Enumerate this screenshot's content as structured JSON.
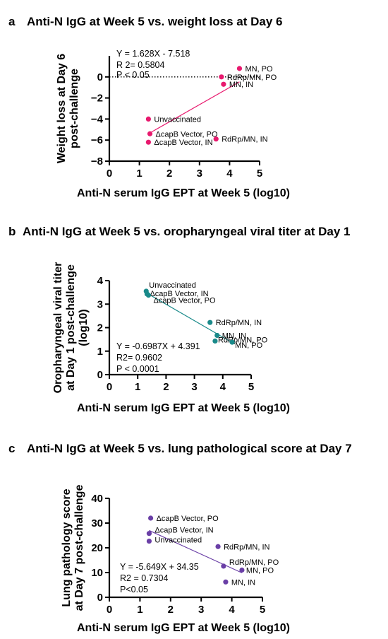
{
  "figure": {
    "panels": [
      {
        "letter": "a",
        "title": "Anti-N IgG at Week 5 vs. weight loss at Day 6",
        "color": "#e8196e",
        "stats": [
          "Y = 1.628X - 7.518",
          "R 2= 0.5804",
          "P < 0.05"
        ]
      },
      {
        "letter": "b",
        "title": "Anti-N IgG at Week 5 vs. oropharyngeal viral titer at Day 1",
        "color": "#1a8a8a",
        "stats": [
          "Y = -0.6987X + 4.391",
          "R2= 0.9602",
          "P < 0.0001"
        ]
      },
      {
        "letter": "c",
        "title": "Anti-N IgG at Week 5 vs. lung pathological score at Day 7",
        "color": "#6a3fa6",
        "stats": [
          "Y = -5.649X + 34.35",
          "R2 = 0.7304",
          "P<0.05"
        ]
      }
    ]
  },
  "chart_data": [
    {
      "type": "scatter",
      "title": "Anti-N IgG at Week 5 vs. weight loss at Day 6",
      "xlabel": "Anti-N serum IgG EPT at Week 5 (log10)",
      "ylabel": "Weight loss at Day 6 post-challenge",
      "xlim": [
        0,
        5
      ],
      "ylim": [
        -8,
        2
      ],
      "xticks": [
        0,
        1,
        2,
        3,
        4,
        5
      ],
      "yticks": [
        -8,
        -6,
        -4,
        -2,
        0
      ],
      "reference_line_y": 0,
      "points": [
        {
          "label": "MN, PO",
          "x": 4.33,
          "y": 0.8
        },
        {
          "label": "RdRp/MN, PO",
          "x": 3.73,
          "y": 0.0
        },
        {
          "label": "MN, IN",
          "x": 3.8,
          "y": -0.7
        },
        {
          "label": "Unvaccinated",
          "x": 1.3,
          "y": -4.0
        },
        {
          "label": "ΔcapB Vector, PO",
          "x": 1.35,
          "y": -5.4
        },
        {
          "label": "RdRp/MN, IN",
          "x": 3.55,
          "y": -5.9
        },
        {
          "label": "ΔcapB Vector, IN",
          "x": 1.3,
          "y": -6.2
        }
      ],
      "fit": {
        "slope": 1.628,
        "intercept": -7.518,
        "x_range": [
          1.3,
          4.33
        ]
      }
    },
    {
      "type": "scatter",
      "title": "Anti-N IgG at Week 5 vs. oropharyngeal viral titer at Day 1",
      "xlabel": "Anti-N serum IgG EPT at Week 5 (log10)",
      "ylabel": "Oropharyngeal viral titer at Day 1 post-challenge (log10)",
      "xlim": [
        0,
        5
      ],
      "ylim": [
        0,
        4
      ],
      "xticks": [
        0,
        1,
        2,
        3,
        4,
        5
      ],
      "yticks": [
        0,
        1,
        2,
        3,
        4
      ],
      "points": [
        {
          "label": "Unvaccinated",
          "x": 1.3,
          "y": 3.55
        },
        {
          "label": "ΔcapB Vector, IN",
          "x": 1.33,
          "y": 3.43
        },
        {
          "label": "ΔcapB Vector, PO",
          "x": 1.38,
          "y": 3.38
        },
        {
          "label": "RdRp/MN, IN",
          "x": 3.55,
          "y": 2.22
        },
        {
          "label": "MN, IN",
          "x": 3.8,
          "y": 1.67
        },
        {
          "label": "RdRp/MN, PO",
          "x": 3.73,
          "y": 1.43
        },
        {
          "label": "MN, PO",
          "x": 4.33,
          "y": 1.38
        }
      ],
      "fit": {
        "slope": -0.6987,
        "intercept": 4.391,
        "x_range": [
          1.3,
          4.33
        ]
      }
    },
    {
      "type": "scatter",
      "title": "Anti-N IgG at Week 5 vs. lung pathological score at Day 7",
      "xlabel": "Anti-N serum IgG EPT at Week 5 (log10)",
      "ylabel": "Lung pathology score at Day 7 post-challenge",
      "xlim": [
        0,
        5
      ],
      "ylim": [
        0,
        40
      ],
      "xticks": [
        0,
        1,
        2,
        3,
        4,
        5
      ],
      "yticks": [
        0,
        10,
        20,
        30,
        40
      ],
      "points": [
        {
          "label": "ΔcapB Vector, PO",
          "x": 1.35,
          "y": 32.0
        },
        {
          "label": "ΔcapB Vector, IN",
          "x": 1.3,
          "y": 25.8
        },
        {
          "label": "Unvaccinated",
          "x": 1.3,
          "y": 22.7
        },
        {
          "label": "RdRp/MN, IN",
          "x": 3.55,
          "y": 20.5
        },
        {
          "label": "RdRp/MN, PO",
          "x": 3.73,
          "y": 12.6
        },
        {
          "label": "MN, PO",
          "x": 4.33,
          "y": 11.0
        },
        {
          "label": "MN, IN",
          "x": 3.8,
          "y": 6.2
        }
      ],
      "fit": {
        "slope": -5.649,
        "intercept": 34.35,
        "x_range": [
          1.3,
          4.33
        ]
      }
    }
  ]
}
